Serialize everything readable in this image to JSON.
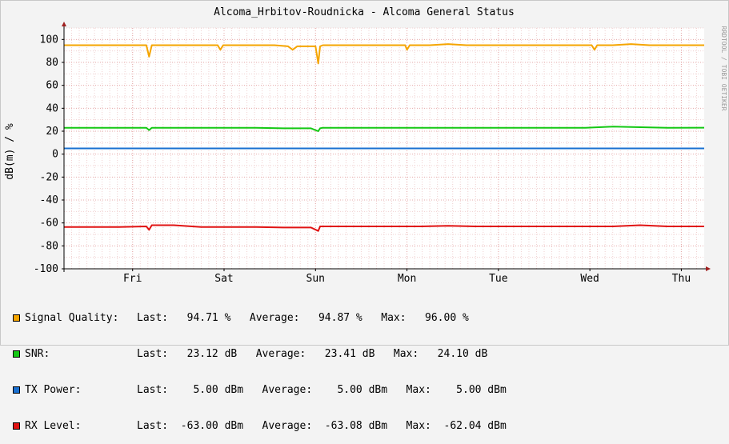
{
  "title": "Alcoma_Hrbitov-Roudnicka - Alcoma General Status",
  "watermark": "RRDTOOL / TOBI OETIKER",
  "colors": {
    "background": "#f3f3f3",
    "canvas": "#ffffff",
    "grid": "#e6aaaa",
    "axis": "#000000",
    "arrow": "#a02020"
  },
  "chart_data": {
    "type": "line",
    "title": "Alcoma_Hrbitov-Roudnicka - Alcoma General Status",
    "ylabel": "dB(m) / %",
    "xlabel": "",
    "ylim": [
      -100,
      110
    ],
    "yticks": [
      100,
      80,
      60,
      40,
      20,
      0,
      -20,
      -40,
      -60,
      -80,
      -100
    ],
    "xlim": [
      0,
      7
    ],
    "xticks": [
      {
        "label": "Fri",
        "x": 0.75
      },
      {
        "label": "Sat",
        "x": 1.75
      },
      {
        "label": "Sun",
        "x": 2.75
      },
      {
        "label": "Mon",
        "x": 3.75
      },
      {
        "label": "Tue",
        "x": 4.75
      },
      {
        "label": "Wed",
        "x": 5.75
      },
      {
        "label": "Thu",
        "x": 6.75
      }
    ],
    "grid": true,
    "legend_position": "bottom",
    "series": [
      {
        "name": "Signal Quality:",
        "color": "#f5a500",
        "x": [
          0,
          0.3,
          0.6,
          0.9,
          0.93,
          0.96,
          1.2,
          1.5,
          1.68,
          1.71,
          1.74,
          2.0,
          2.3,
          2.45,
          2.5,
          2.55,
          2.75,
          2.78,
          2.8,
          2.83,
          3.0,
          3.3,
          3.6,
          3.73,
          3.75,
          3.78,
          4.0,
          4.2,
          4.4,
          4.5,
          4.8,
          5.0,
          5.2,
          5.5,
          5.77,
          5.8,
          5.83,
          6.0,
          6.2,
          6.4,
          6.5,
          6.8,
          7.0
        ],
        "values": [
          95,
          95,
          95,
          95,
          85,
          95,
          95,
          95,
          95,
          91,
          95,
          95,
          95,
          94,
          91,
          94,
          94,
          79,
          94,
          95,
          95,
          95,
          95,
          95,
          91,
          95,
          95,
          96,
          95,
          95,
          95,
          95,
          95,
          95,
          95,
          91,
          95,
          95,
          96,
          95,
          95,
          95,
          95
        ]
      },
      {
        "name": "SNR:",
        "color": "#14c814",
        "x": [
          0,
          0.3,
          0.6,
          0.9,
          0.93,
          0.96,
          1.2,
          1.5,
          1.8,
          2.1,
          2.4,
          2.7,
          2.78,
          2.8,
          2.83,
          3.0,
          3.3,
          3.6,
          3.9,
          4.2,
          4.5,
          4.8,
          5.1,
          5.4,
          5.7,
          6.0,
          6.3,
          6.6,
          7.0
        ],
        "values": [
          23,
          23,
          23,
          23,
          21,
          23,
          23,
          23,
          23,
          23,
          22.5,
          22.5,
          20,
          22.5,
          23,
          23,
          23,
          23,
          23,
          23,
          23,
          23,
          23,
          23,
          23,
          24,
          23.5,
          23,
          23.1
        ]
      },
      {
        "name": "TX Power:",
        "color": "#1a70d0",
        "x": [
          0,
          7.0
        ],
        "values": [
          5,
          5
        ]
      },
      {
        "name": "RX Level:",
        "color": "#e11212",
        "x": [
          0,
          0.3,
          0.6,
          0.9,
          0.93,
          0.96,
          1.2,
          1.5,
          1.8,
          2.1,
          2.4,
          2.7,
          2.78,
          2.8,
          2.83,
          3.0,
          3.3,
          3.6,
          3.9,
          4.2,
          4.5,
          4.8,
          5.1,
          5.4,
          5.7,
          6.0,
          6.3,
          6.6,
          7.0
        ],
        "values": [
          -63.5,
          -63.5,
          -63.5,
          -63,
          -66,
          -62,
          -62,
          -63.5,
          -63.5,
          -63.5,
          -64,
          -64,
          -67,
          -63,
          -63,
          -63,
          -63,
          -63,
          -63,
          -62.5,
          -63,
          -63,
          -63,
          -63,
          -63,
          -63,
          -62,
          -63,
          -63
        ]
      }
    ]
  },
  "legend": [
    {
      "name": "Signal Quality:",
      "stats": "Last:   94.71 %   Average:   94.87 %   Max:   96.00 %",
      "color": "#f5a500"
    },
    {
      "name": "SNR:",
      "stats": "Last:   23.12 dB   Average:   23.41 dB   Max:   24.10 dB",
      "color": "#14c814"
    },
    {
      "name": "TX Power:",
      "stats": "Last:    5.00 dBm   Average:    5.00 dBm   Max:    5.00 dBm",
      "color": "#1a70d0"
    },
    {
      "name": "RX Level:",
      "stats": "Last:  -63.00 dBm   Average:  -63.08 dBm   Max:  -62.04 dBm",
      "color": "#e11212"
    }
  ]
}
